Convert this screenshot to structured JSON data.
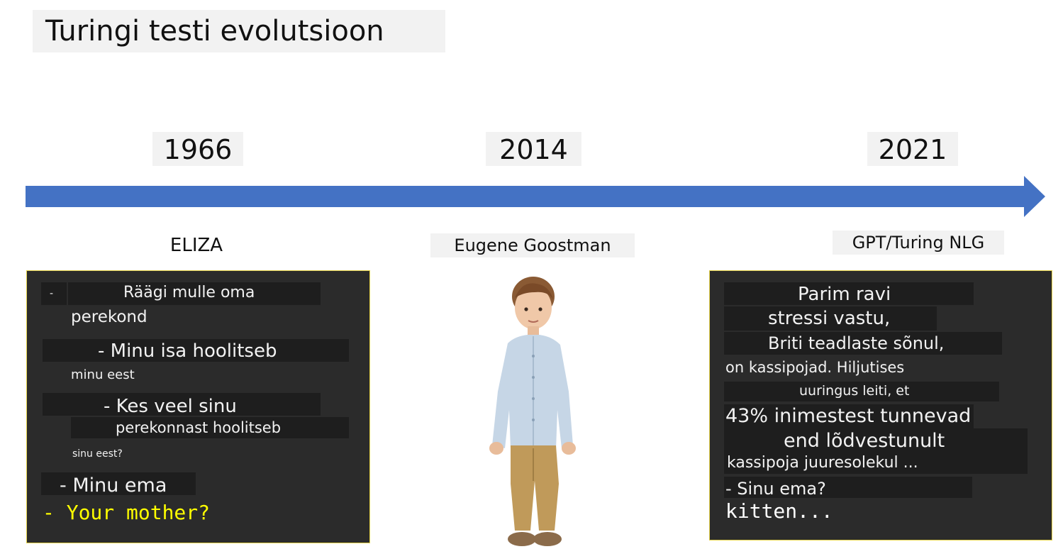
{
  "title": "Turingi testi evolutsioon",
  "timeline": [
    {
      "year": "1966",
      "name": "ELIZA"
    },
    {
      "year": "2014",
      "name": "Eugene Goostman"
    },
    {
      "year": "2021",
      "name": "GPT/Turing NLG"
    }
  ],
  "eliza": {
    "dash": "-",
    "line1": "Räägi mulle oma",
    "line2": "perekond",
    "line3": "- Minu isa hoolitseb",
    "line4": "minu eest",
    "line5": "- Kes veel sinu",
    "line6": "perekonnast hoolitseb",
    "line7": "sinu eest?",
    "line8": "- Minu ema",
    "line9": "- Your mother?"
  },
  "gpt": {
    "line1": "Parim ravi",
    "line2": "stressi vastu,",
    "line3": "Briti teadlaste sõnul,",
    "line4": "on kassipojad. Hiljutises",
    "line5": "uuringus leiti, et",
    "line6": "43% inimestest tunnevad",
    "line7": "end lõdvestunult",
    "line8": "kassipoja juuresolekul ...",
    "line9": "- Sinu ema?",
    "line10": "kitten..."
  },
  "colors": {
    "arrow": "#4472c4",
    "panel_bg": "#2b2b2b",
    "panel_border": "#e6d34a",
    "yellow_text": "#ffff00"
  }
}
